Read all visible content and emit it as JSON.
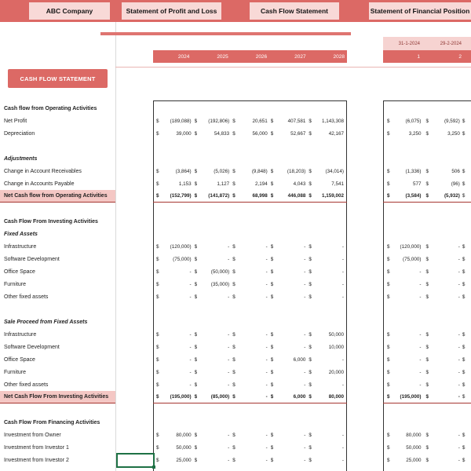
{
  "banner": {
    "buttons": [
      "ABC Company",
      "Statement of Profit and Loss",
      "Cash Flow Statement",
      "Statement of Financial Position"
    ]
  },
  "sheet_title": "CASH FLOW STATEMENT",
  "currency": "$",
  "years": [
    "2024",
    "2025",
    "2026",
    "2027",
    "2028"
  ],
  "monthly_header": {
    "dates": [
      "31-1-2024",
      "29-2-2024"
    ],
    "numbers": [
      "1",
      "2"
    ]
  },
  "colors": {
    "banner_red": "#dc6965",
    "button_pink": "#f8d9d7",
    "highlight_pink": "#f4c7c4",
    "total_border_red": "#a63631",
    "selection_green": "#1e7145"
  },
  "rows": [
    {
      "label": "Cash flow from Operating Activities",
      "style": "section",
      "main": null,
      "monthly": null
    },
    {
      "label": "Net Profit",
      "style": "item",
      "main": [
        "(189,088)",
        "(192,806)",
        "20,651",
        "407,581",
        "1,143,308"
      ],
      "monthly": [
        "(6,075)",
        "(9,592)"
      ]
    },
    {
      "label": "Depreciation",
      "style": "item",
      "main": [
        "39,000",
        "54,833",
        "56,000",
        "52,667",
        "42,167"
      ],
      "monthly": [
        "3,250",
        "3,250"
      ]
    },
    {
      "label": "",
      "style": "blank",
      "main": null,
      "monthly": null
    },
    {
      "label": "Adjustments",
      "style": "subsection",
      "main": null,
      "monthly": null
    },
    {
      "label": "Change in Account Receivables",
      "style": "item",
      "main": [
        "(3,864)",
        "(5,026)",
        "(9,848)",
        "(18,203)",
        "(34,014)"
      ],
      "monthly": [
        "(1,336)",
        "506"
      ]
    },
    {
      "label": "Change in Accounts Payable",
      "style": "item",
      "main": [
        "1,153",
        "1,127",
        "2,194",
        "4,043",
        "7,541"
      ],
      "monthly": [
        "577",
        "(96)"
      ]
    },
    {
      "label": "Net Cash flow from Operating Activities",
      "style": "total",
      "main": [
        "(152,799)",
        "(141,872)",
        "68,998",
        "446,088",
        "1,159,002"
      ],
      "monthly": [
        "(3,584)",
        "(5,932)"
      ]
    },
    {
      "label": "",
      "style": "blank",
      "main": null,
      "monthly": null
    },
    {
      "label": "Cash Flow From Investing Activities",
      "style": "section",
      "main": null,
      "monthly": null
    },
    {
      "label": "Fixed Assets",
      "style": "subsection",
      "main": null,
      "monthly": null
    },
    {
      "label": "Infrastructure",
      "style": "item",
      "main": [
        "(120,000)",
        "-",
        "-",
        "-",
        "-"
      ],
      "monthly": [
        "(120,000)",
        "-"
      ]
    },
    {
      "label": "Software Development",
      "style": "item",
      "main": [
        "(75,000)",
        "-",
        "-",
        "-",
        "-"
      ],
      "monthly": [
        "(75,000)",
        "-"
      ]
    },
    {
      "label": "Office Space",
      "style": "item",
      "main": [
        "-",
        "(50,000)",
        "-",
        "-",
        "-"
      ],
      "monthly": [
        "-",
        "-"
      ]
    },
    {
      "label": "Furniture",
      "style": "item",
      "main": [
        "-",
        "(35,000)",
        "-",
        "-",
        "-"
      ],
      "monthly": [
        "-",
        "-"
      ]
    },
    {
      "label": "Other fixed assets",
      "style": "item",
      "main": [
        "-",
        "-",
        "-",
        "-",
        "-"
      ],
      "monthly": [
        "-",
        "-"
      ]
    },
    {
      "label": "",
      "style": "blank",
      "main": null,
      "monthly": null
    },
    {
      "label": "Sale Proceed from Fixed Assets",
      "style": "subsection",
      "main": null,
      "monthly": null
    },
    {
      "label": "Infrastructure",
      "style": "item",
      "main": [
        "-",
        "-",
        "-",
        "-",
        "50,000"
      ],
      "monthly": [
        "-",
        "-"
      ]
    },
    {
      "label": "Software Development",
      "style": "item",
      "main": [
        "-",
        "-",
        "-",
        "-",
        "10,000"
      ],
      "monthly": [
        "-",
        "-"
      ]
    },
    {
      "label": "Office Space",
      "style": "item",
      "main": [
        "-",
        "-",
        "-",
        "6,000",
        "-"
      ],
      "monthly": [
        "-",
        "-"
      ]
    },
    {
      "label": "Furniture",
      "style": "item",
      "main": [
        "-",
        "-",
        "-",
        "-",
        "20,000"
      ],
      "monthly": [
        "-",
        "-"
      ]
    },
    {
      "label": "Other fixed assets",
      "style": "item",
      "main": [
        "-",
        "-",
        "-",
        "-",
        "-"
      ],
      "monthly": [
        "-",
        "-"
      ]
    },
    {
      "label": "Net Cash Flow From Investing Activities",
      "style": "total",
      "main": [
        "(195,000)",
        "(85,000)",
        "-",
        "6,000",
        "80,000"
      ],
      "monthly": [
        "(195,000)",
        "-"
      ]
    },
    {
      "label": "",
      "style": "blank",
      "main": null,
      "monthly": null
    },
    {
      "label": "Cash Flow From Financing Activities",
      "style": "section",
      "main": null,
      "monthly": null
    },
    {
      "label": "Investment from Owner",
      "style": "item",
      "main": [
        "80,000",
        "-",
        "-",
        "-",
        "-"
      ],
      "monthly": [
        "80,000",
        "-"
      ]
    },
    {
      "label": "Investment from Investor 1",
      "style": "item",
      "main": [
        "50,000",
        "-",
        "-",
        "-",
        "-"
      ],
      "monthly": [
        "50,000",
        "-"
      ]
    },
    {
      "label": "Investment from Investor 2",
      "style": "item",
      "main": [
        "25,000",
        "-",
        "-",
        "-",
        "-"
      ],
      "monthly": [
        "25,000",
        "-"
      ]
    }
  ]
}
